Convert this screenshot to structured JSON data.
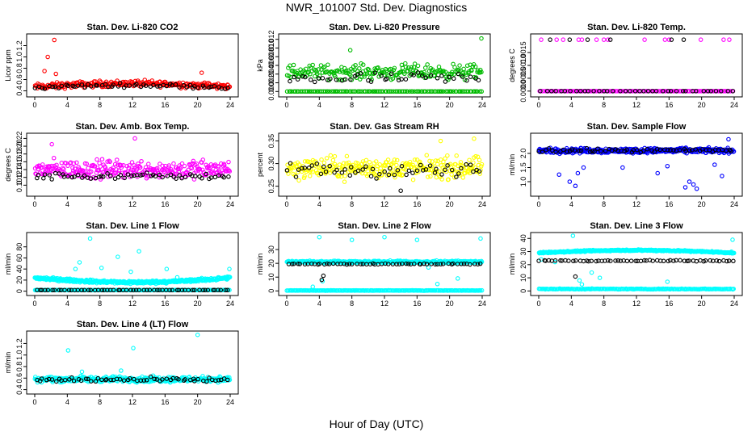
{
  "figure": {
    "title": "NWR_101007  Std. Dev. Diagnostics",
    "xlabel": "Hour of Day (UTC)"
  },
  "chart_data": [
    {
      "type": "scatter",
      "title": "Stan. Dev. Li-820 CO2",
      "ylabel": "Licor ppm",
      "xlim": [
        0,
        24
      ],
      "ylim": [
        0.35,
        1.35
      ],
      "xticks": [
        0,
        4,
        8,
        12,
        16,
        20,
        24
      ],
      "yticks": [
        0.4,
        0.6,
        0.8,
        1.0,
        1.2
      ],
      "ytick_labels": [
        "0.4",
        "0.6",
        "0.8",
        "1.0",
        "1.2"
      ],
      "series": [
        {
          "color": "#ff0000",
          "n": 260,
          "base": 0.47,
          "spread": 0.08,
          "drift": 0.06,
          "outliers": [
            [
              1.2,
              0.75
            ],
            [
              1.6,
              1.0
            ],
            [
              2.4,
              1.3
            ],
            [
              2.6,
              0.7
            ],
            [
              20.5,
              0.72
            ]
          ]
        },
        {
          "color": "#000000",
          "n": 60,
          "base": 0.46,
          "spread": 0.05,
          "drift": 0.04,
          "outliers": []
        }
      ]
    },
    {
      "type": "scatter",
      "title": "Stan. Dev. Li-820 Pressure",
      "ylabel": "kPa",
      "xlim": [
        0,
        24
      ],
      "ylim": [
        -0.0005,
        0.0125
      ],
      "xticks": [
        0,
        4,
        8,
        12,
        16,
        20,
        24
      ],
      "yticks": [
        0.0,
        0.002,
        0.004,
        0.006,
        0.008,
        0.01,
        0.012
      ],
      "ytick_labels": [
        "0.000",
        "0.002",
        "0.004",
        "0.006",
        "0.008",
        "0.010",
        "0.012"
      ],
      "series": [
        {
          "color": "#00bb00",
          "n": 220,
          "base": 0.0045,
          "spread": 0.0025,
          "drift": 0,
          "outliers": [
            [
              7.8,
              0.0095
            ],
            [
              23.9,
              0.0122
            ]
          ],
          "floor": 0.0
        },
        {
          "color": "#00bb00",
          "n": 120,
          "base": 0.0,
          "spread": 0.0,
          "drift": 0,
          "outliers": []
        },
        {
          "color": "#000000",
          "n": 45,
          "base": 0.003,
          "spread": 0.002,
          "drift": 0,
          "outliers": []
        }
      ]
    },
    {
      "type": "scatter",
      "title": "Stan. Dev. Li-820 Temp.",
      "ylabel": "degrees C",
      "xlim": [
        0,
        24
      ],
      "ylim": [
        -0.0001,
        0.0021
      ],
      "xticks": [
        0,
        4,
        8,
        12,
        16,
        20,
        24
      ],
      "yticks": [
        0.0,
        0.0005,
        0.001,
        0.0015
      ],
      "ytick_labels": [
        "0.0000",
        "0.0005",
        "0.0010",
        "0.0015"
      ],
      "series": [
        {
          "color": "#ff00ff",
          "n": 140,
          "base": 0.0,
          "spread": 0.0,
          "drift": 0,
          "outliers": [
            [
              0.3,
              0.002
            ],
            [
              2.2,
              0.002
            ],
            [
              3.0,
              0.002
            ],
            [
              4.9,
              0.002
            ],
            [
              5.3,
              0.002
            ],
            [
              7.1,
              0.002
            ],
            [
              8.0,
              0.002
            ],
            [
              8.5,
              0.002
            ],
            [
              13.0,
              0.002
            ],
            [
              15.5,
              0.002
            ],
            [
              16.0,
              0.002
            ],
            [
              19.9,
              0.002
            ],
            [
              22.7,
              0.002
            ],
            [
              23.4,
              0.002
            ]
          ]
        },
        {
          "color": "#000000",
          "n": 40,
          "base": 0.0,
          "spread": 0.0,
          "drift": 0,
          "outliers": [
            [
              1.4,
              0.002
            ],
            [
              3.8,
              0.002
            ],
            [
              6.0,
              0.002
            ],
            [
              8.8,
              0.002
            ],
            [
              16.3,
              0.002
            ],
            [
              17.8,
              0.002
            ]
          ]
        }
      ]
    },
    {
      "type": "scatter",
      "title": "Stan. Dev. Amb. Box Temp.",
      "ylabel": "degrees C",
      "xlim": [
        0,
        24
      ],
      "ylim": [
        0.08,
        0.225
      ],
      "xticks": [
        0,
        4,
        8,
        12,
        16,
        20,
        24
      ],
      "yticks": [
        0.1,
        0.12,
        0.14,
        0.16,
        0.18,
        0.2,
        0.22
      ],
      "ytick_labels": [
        "0.10",
        "0.12",
        "0.14",
        "0.16",
        "0.18",
        "0.20",
        "0.22"
      ],
      "series": [
        {
          "color": "#ff00ff",
          "n": 300,
          "base": 0.14,
          "spread": 0.035,
          "drift": 0,
          "outliers": [
            [
              12.3,
              0.22
            ],
            [
              2.1,
              0.205
            ]
          ]
        },
        {
          "color": "#000000",
          "n": 60,
          "base": 0.123,
          "spread": 0.012,
          "drift": 0,
          "outliers": []
        }
      ]
    },
    {
      "type": "scatter",
      "title": "Stan. Dev. Gas Stream RH",
      "ylabel": "percent",
      "xlim": [
        0,
        24
      ],
      "ylim": [
        0.235,
        0.36
      ],
      "xticks": [
        0,
        4,
        8,
        12,
        16,
        20,
        24
      ],
      "yticks": [
        0.25,
        0.3,
        0.35
      ],
      "ytick_labels": [
        "0.25",
        "0.30",
        "0.35"
      ],
      "series": [
        {
          "color": "#ffff00",
          "n": 300,
          "base": 0.29,
          "spread": 0.035,
          "drift": 0,
          "outliers": [
            [
              23.0,
              0.355
            ],
            [
              18.9,
              0.35
            ]
          ]
        },
        {
          "color": "#000000",
          "n": 55,
          "base": 0.285,
          "spread": 0.025,
          "drift": 0,
          "outliers": [
            [
              14.0,
              0.24
            ]
          ]
        }
      ]
    },
    {
      "type": "scatter",
      "title": "Stan. Dev. Sample Flow",
      "ylabel": "ml/min",
      "xlim": [
        0,
        24
      ],
      "ylim": [
        0.6,
        2.6
      ],
      "xticks": [
        0,
        4,
        8,
        12,
        16,
        20,
        24
      ],
      "yticks": [
        1.0,
        1.5,
        2.0
      ],
      "ytick_labels": [
        "1.0",
        "1.5",
        "2.0"
      ],
      "series": [
        {
          "color": "#0000ff",
          "n": 360,
          "base": 2.1,
          "spread": 0.13,
          "drift": 0,
          "outliers": [
            [
              2.5,
              1.25
            ],
            [
              3.8,
              1.0
            ],
            [
              4.5,
              0.85
            ],
            [
              4.8,
              1.3
            ],
            [
              5.5,
              1.5
            ],
            [
              10.3,
              1.5
            ],
            [
              14.6,
              1.3
            ],
            [
              15.8,
              1.55
            ],
            [
              18.0,
              0.8
            ],
            [
              18.5,
              1.0
            ],
            [
              19.0,
              0.9
            ],
            [
              19.4,
              0.75
            ],
            [
              21.6,
              1.6
            ],
            [
              22.5,
              1.2
            ],
            [
              23.3,
              2.5
            ]
          ]
        },
        {
          "color": "#000000",
          "n": 60,
          "base": 2.1,
          "spread": 0.1,
          "drift": 0,
          "outliers": []
        }
      ]
    },
    {
      "type": "scatter",
      "title": "Stan. Dev. Line 1 Flow",
      "ylabel": "ml/min",
      "xlim": [
        0,
        24
      ],
      "ylim": [
        -2,
        100
      ],
      "xticks": [
        0,
        4,
        8,
        12,
        16,
        20,
        24
      ],
      "yticks": [
        0,
        20,
        40,
        60,
        80
      ],
      "ytick_labels": [
        "0",
        "20",
        "40",
        "60",
        "80"
      ],
      "series": [
        {
          "color": "#00ffff",
          "n": 420,
          "base": 24,
          "spread": 4,
          "drift": -8,
          "outliers": [
            [
              6.8,
              95
            ],
            [
              5.5,
              52
            ],
            [
              5.0,
              40
            ],
            [
              8.2,
              42
            ],
            [
              10.2,
              62
            ],
            [
              12.8,
              72
            ],
            [
              11.8,
              35
            ],
            [
              16.2,
              40
            ],
            [
              17.5,
              25
            ],
            [
              23.9,
              40
            ]
          ]
        },
        {
          "color": "#00ffff",
          "n": 200,
          "base": 2,
          "spread": 0.3,
          "drift": 0,
          "outliers": []
        },
        {
          "color": "#000000",
          "n": 60,
          "base": 2,
          "spread": 0.2,
          "drift": 0,
          "outliers": []
        }
      ]
    },
    {
      "type": "scatter",
      "title": "Stan. Dev. Line 2 Flow",
      "ylabel": "ml/min",
      "xlim": [
        0,
        24
      ],
      "ylim": [
        -1,
        40
      ],
      "xticks": [
        0,
        4,
        8,
        12,
        16,
        20,
        24
      ],
      "yticks": [
        0,
        10,
        20,
        30
      ],
      "ytick_labels": [
        "0",
        "10",
        "20",
        "30"
      ],
      "series": [
        {
          "color": "#00ffff",
          "n": 420,
          "base": 21,
          "spread": 1.2,
          "drift": 0,
          "outliers": [
            [
              4.0,
              39
            ],
            [
              8.0,
              37
            ],
            [
              12.0,
              39
            ],
            [
              16.0,
              37
            ],
            [
              23.8,
              38
            ],
            [
              3.2,
              3
            ],
            [
              4.4,
              7
            ],
            [
              17.4,
              17
            ],
            [
              18.5,
              5
            ],
            [
              21.0,
              9
            ]
          ]
        },
        {
          "color": "#00ffff",
          "n": 200,
          "base": 0.3,
          "spread": 0.2,
          "drift": 0,
          "outliers": []
        },
        {
          "color": "#000000",
          "n": 60,
          "base": 19.5,
          "spread": 0.5,
          "drift": 0,
          "outliers": [
            [
              4.3,
              8
            ],
            [
              4.5,
              11
            ]
          ]
        }
      ]
    },
    {
      "type": "scatter",
      "title": "Stan. Dev. Line 3 Flow",
      "ylabel": "ml/min",
      "xlim": [
        0,
        24
      ],
      "ylim": [
        -1,
        42
      ],
      "xticks": [
        0,
        4,
        8,
        12,
        16,
        20,
        24
      ],
      "yticks": [
        0,
        10,
        20,
        30,
        40
      ],
      "ytick_labels": [
        "0",
        "10",
        "20",
        "30",
        "40"
      ],
      "series": [
        {
          "color": "#00ffff",
          "n": 420,
          "base": 29,
          "spread": 0.8,
          "drift": 2,
          "outliers": [
            [
              4.2,
              42
            ],
            [
              5.0,
              8
            ],
            [
              5.3,
              5
            ],
            [
              6.5,
              14
            ],
            [
              7.5,
              10
            ],
            [
              15.8,
              7
            ],
            [
              23.8,
              39
            ],
            [
              0.3,
              24
            ],
            [
              2.0,
              22
            ]
          ]
        },
        {
          "color": "#00ffff",
          "n": 200,
          "base": 1.5,
          "spread": 0.4,
          "drift": 0,
          "outliers": []
        },
        {
          "color": "#000000",
          "n": 60,
          "base": 23,
          "spread": 0.7,
          "drift": 0,
          "outliers": [
            [
              4.5,
              11
            ]
          ]
        }
      ]
    },
    {
      "type": "scatter",
      "title": "Stan. Dev. Line 4 (LT) Flow",
      "ylabel": "ml/min",
      "xlim": [
        0,
        24
      ],
      "ylim": [
        0.38,
        1.36
      ],
      "xticks": [
        0,
        4,
        8,
        12,
        16,
        20,
        24
      ],
      "yticks": [
        0.4,
        0.6,
        0.8,
        1.0,
        1.2
      ],
      "ytick_labels": [
        "0.4",
        "0.6",
        "0.8",
        "1.0",
        "1.2"
      ],
      "series": [
        {
          "color": "#00ffff",
          "n": 380,
          "base": 0.58,
          "spread": 0.07,
          "drift": 0,
          "outliers": [
            [
              4.1,
              1.08
            ],
            [
              12.1,
              1.12
            ],
            [
              20.0,
              1.35
            ],
            [
              5.8,
              0.71
            ],
            [
              10.6,
              0.73
            ]
          ]
        },
        {
          "color": "#000000",
          "n": 60,
          "base": 0.57,
          "spread": 0.06,
          "drift": 0,
          "outliers": []
        }
      ]
    }
  ]
}
